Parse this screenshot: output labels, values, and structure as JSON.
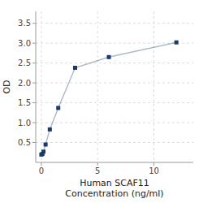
{
  "chart_data": {
    "type": "line",
    "x": [
      0,
      0.094,
      0.188,
      0.375,
      0.75,
      1.5,
      3,
      6,
      12
    ],
    "values": [
      0.197,
      0.213,
      0.27,
      0.45,
      0.83,
      1.37,
      2.38,
      2.65,
      3.02
    ],
    "color": "#1a3a6b",
    "marker": "square",
    "xlabel": "Human SCAF11\nConcentration (ng/ml)",
    "ylabel": "OD",
    "xlim": [
      -0.5,
      13.5
    ],
    "ylim": [
      0,
      3.8
    ],
    "xticks": [
      0,
      5,
      10
    ],
    "yticks": [
      0.5,
      {
        "value": 1.0,
        "label": "1.0"
      },
      1.5,
      {
        "value": 2.0,
        "label": "2.0"
      },
      2.5,
      {
        "value": 3.0,
        "label": "3.0"
      },
      3.5
    ],
    "grid": true
  }
}
